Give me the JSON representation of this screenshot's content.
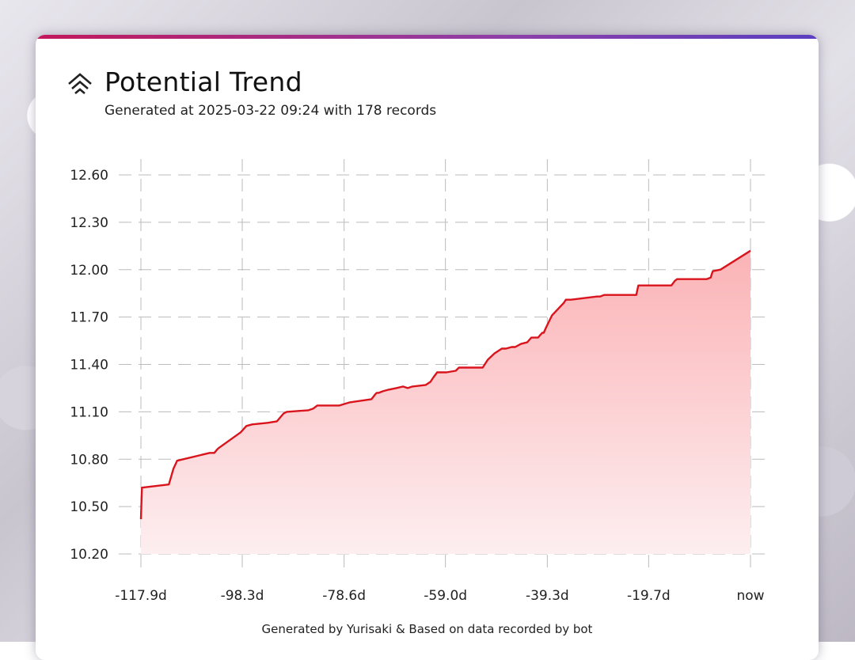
{
  "header": {
    "title": "Potential Trend",
    "subtitle": "Generated at 2025-03-22 09:24 with 178 records"
  },
  "footer": {
    "text": "Generated by Yurisaki & Based on data recorded by bot"
  },
  "colors": {
    "line": "#d9141c",
    "fill_top": "#fbb3b6",
    "fill_bottom": "#fdeef0",
    "grid": "#bbbbbb",
    "accent_start": "#c2185b",
    "accent_end": "#5a3fc0"
  },
  "icon": "stacked-chevrons-icon",
  "chart_data": {
    "type": "area",
    "title": "Potential Trend",
    "xlabel": "",
    "ylabel": "",
    "xlim": [
      -117.9,
      0
    ],
    "ylim": [
      10.2,
      12.6
    ],
    "grid": true,
    "x_ticks": [
      -117.9,
      -98.3,
      -78.6,
      -59.0,
      -39.3,
      -19.7,
      0
    ],
    "x_tick_labels": [
      "-117.9d",
      "-98.3d",
      "-78.6d",
      "-59.0d",
      "-39.3d",
      "-19.7d",
      "now"
    ],
    "y_ticks": [
      10.2,
      10.5,
      10.8,
      11.1,
      11.4,
      11.7,
      12.0,
      12.3,
      12.6
    ],
    "y_tick_labels": [
      "10.20",
      "10.50",
      "10.80",
      "11.10",
      "11.40",
      "11.70",
      "12.00",
      "12.30",
      "12.60"
    ],
    "series": [
      {
        "x": [
          -117.9,
          -117.7,
          -112.5,
          -111.6,
          -110.9,
          -104.6,
          -103.7,
          -103.2,
          -102.9,
          -98.6,
          -97.5,
          -96.4,
          -93.4,
          -91.6,
          -90.3,
          -89.7,
          -85.5,
          -84.6,
          -83.8,
          -82.6,
          -81.3,
          -79.5,
          -77.5,
          -73.3,
          -72.6,
          -72.3,
          -71.9,
          -71.1,
          -70.0,
          -68.5,
          -67.2,
          -66.3,
          -65.4,
          -62.8,
          -61.9,
          -61.3,
          -60.6,
          -59.4,
          -58.8,
          -57.0,
          -56.4,
          -54.3,
          -53.5,
          -52.8,
          -51.8,
          -50.8,
          -49.5,
          -48.1,
          -47.3,
          -46.2,
          -45.5,
          -44.4,
          -43.2,
          -42.4,
          -41.1,
          -40.3,
          -40.0,
          -39.6,
          -39.0,
          -38.4,
          -36.1,
          -35.7,
          -34.7,
          -29.7,
          -29.1,
          -28.3,
          -22.1,
          -21.7,
          -20.8,
          -15.3,
          -14.6,
          -14.2,
          -8.5,
          -7.7,
          -7.3,
          -5.8,
          0.0
        ],
        "y": [
          10.42,
          10.62,
          10.64,
          10.74,
          10.79,
          10.84,
          10.84,
          10.86,
          10.87,
          10.97,
          11.01,
          11.02,
          11.03,
          11.04,
          11.09,
          11.1,
          11.11,
          11.12,
          11.14,
          11.14,
          11.14,
          11.14,
          11.16,
          11.18,
          11.21,
          11.22,
          11.22,
          11.23,
          11.24,
          11.25,
          11.26,
          11.25,
          11.26,
          11.27,
          11.29,
          11.32,
          11.35,
          11.35,
          11.35,
          11.36,
          11.38,
          11.38,
          11.38,
          11.38,
          11.38,
          11.43,
          11.47,
          11.5,
          11.5,
          11.51,
          11.51,
          11.53,
          11.54,
          11.57,
          11.57,
          11.6,
          11.6,
          11.63,
          11.67,
          11.71,
          11.79,
          11.81,
          11.81,
          11.83,
          11.83,
          11.84,
          11.84,
          11.9,
          11.9,
          11.9,
          11.93,
          11.94,
          11.94,
          11.95,
          11.99,
          12.0,
          12.12
        ]
      }
    ]
  }
}
